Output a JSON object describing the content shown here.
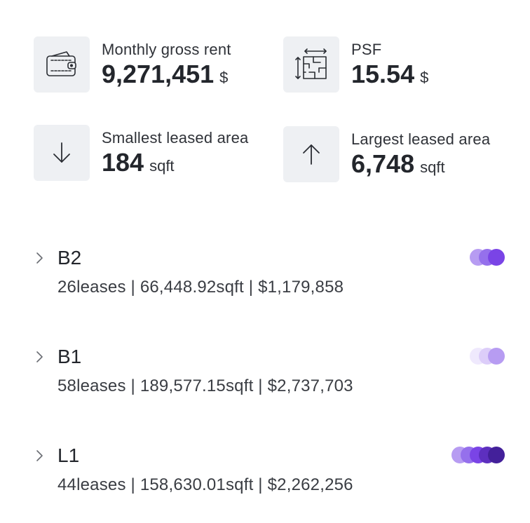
{
  "stats": [
    {
      "label": "Monthly gross rent",
      "value": "9,271,451",
      "unit": "$",
      "icon": "wallet-icon"
    },
    {
      "label": "PSF",
      "value": "15.54",
      "unit": "$",
      "icon": "floor-plan-icon"
    },
    {
      "label": "Smallest leased area",
      "value": "184",
      "unit": "sqft",
      "icon": "arrow-down-icon"
    },
    {
      "label": "Largest leased area",
      "value": "6,748",
      "unit": "sqft",
      "icon": "arrow-up-icon"
    }
  ],
  "floors": [
    {
      "name": "B2",
      "summary": "26leases | 66,448.92sqft | $1,179,858",
      "dots": [
        "#b79cf2",
        "#9570ec",
        "#7a44e6"
      ]
    },
    {
      "name": "B1",
      "summary": "58leases | 189,577.15sqft | $2,737,703",
      "dots": [
        "#efe9fd",
        "#dccdf9",
        "#b79cf2"
      ]
    },
    {
      "name": "L1",
      "summary": "44leases | 158,630.01sqft | $2,262,256",
      "dots": [
        "#b79cf2",
        "#9570ec",
        "#7a44e6",
        "#5d2fbf",
        "#43209a"
      ]
    }
  ],
  "colors": {
    "icon_bg": "#eef0f3",
    "text": "#23262c",
    "accent": "#7a44e6"
  }
}
